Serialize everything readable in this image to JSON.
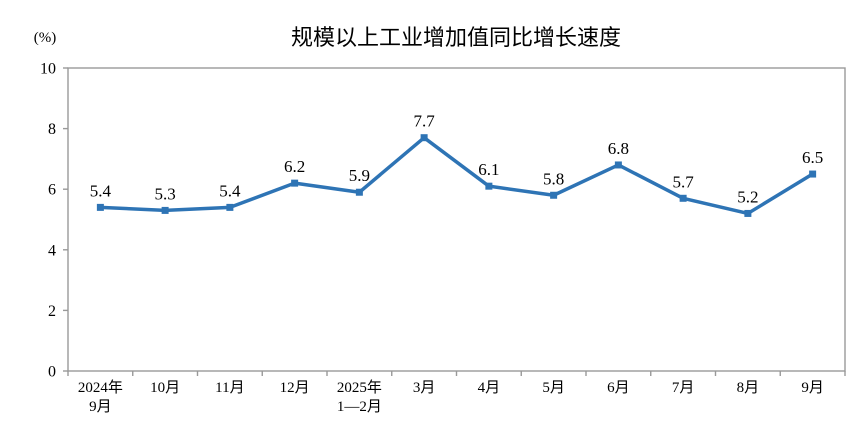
{
  "page": {
    "background": "#FFFFFF"
  },
  "chart": {
    "title": "规模以上工业增加值同比增长速度",
    "unit_label": "(%)"
  },
  "chart_data": {
    "type": "line",
    "title": "规模以上工业增加值同比增长速度",
    "xlabel": "",
    "ylabel": "(%)",
    "categories": [
      "2024年\n9月",
      "10月",
      "11月",
      "12月",
      "2025年\n1—2月",
      "3月",
      "4月",
      "5月",
      "6月",
      "7月",
      "8月",
      "9月"
    ],
    "values": [
      5.4,
      5.3,
      5.4,
      6.2,
      5.9,
      7.7,
      6.1,
      5.8,
      6.8,
      5.7,
      5.2,
      6.5
    ],
    "ylim": [
      0,
      10
    ],
    "yticks": [
      0,
      2,
      4,
      6,
      8,
      10
    ],
    "grid": false,
    "legend_position": "none",
    "data_labels_shown": true,
    "line_color": "#2E74B5",
    "marker_shape": "square",
    "axis_color": "#999999",
    "text_color": "#000000"
  }
}
